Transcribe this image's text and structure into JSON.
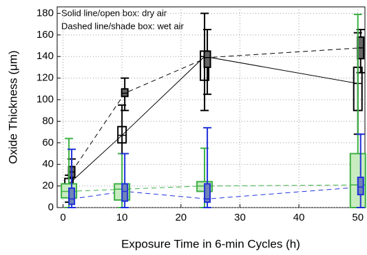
{
  "chart_data": {
    "type": "box",
    "annotations": [
      "Solid line/open box: dry air",
      "Dashed line/shade box: wet air"
    ],
    "xlabel": "Exposure Time in 6-min Cycles (h)",
    "ylabel": "Oxide Thickness (μm)",
    "x": [
      1,
      10,
      24,
      50
    ],
    "xlim": [
      -1,
      51.2
    ],
    "xticks": [
      0,
      10,
      20,
      30,
      40,
      50
    ],
    "ylim": [
      0,
      186
    ],
    "yticks": [
      0,
      20,
      40,
      60,
      80,
      100,
      120,
      140,
      160,
      180
    ],
    "grid": true,
    "series": [
      {
        "color": "#000000",
        "fill": "none",
        "dashed": false,
        "min": [
          5,
          50,
          90,
          68
        ],
        "q1": [
          18,
          60,
          118,
          90
        ],
        "median": [
          22,
          67,
          140,
          115
        ],
        "q3": [
          27,
          75,
          145,
          130
        ],
        "max": [
          30,
          95,
          180,
          162
        ]
      },
      {
        "color": "#000000",
        "fill": "#666666",
        "dashed": true,
        "min": [
          20,
          90,
          105,
          125
        ],
        "q1": [
          28,
          103,
          130,
          138
        ],
        "median": [
          33,
          106,
          139,
          148
        ],
        "q3": [
          38,
          110,
          145,
          158
        ],
        "max": [
          45,
          120,
          165,
          165
        ]
      },
      {
        "color": "#3cb043",
        "fill": "#c8ecc0",
        "dashed": true,
        "min": [
          0,
          0,
          0,
          0
        ],
        "q1": [
          9,
          7,
          15,
          0
        ],
        "median": [
          15,
          17,
          20,
          21
        ],
        "q3": [
          22,
          22,
          24,
          50
        ],
        "max": [
          64,
          50,
          55,
          179
        ]
      },
      {
        "color": "#1f2fd8",
        "fill": "#6f84b8",
        "dashed": true,
        "min": [
          0,
          0,
          0,
          0
        ],
        "q1": [
          3,
          6,
          5,
          12
        ],
        "median": [
          8,
          15,
          8,
          19
        ],
        "q3": [
          18,
          22,
          22,
          28
        ],
        "max": [
          54,
          50,
          74,
          68
        ]
      }
    ]
  }
}
